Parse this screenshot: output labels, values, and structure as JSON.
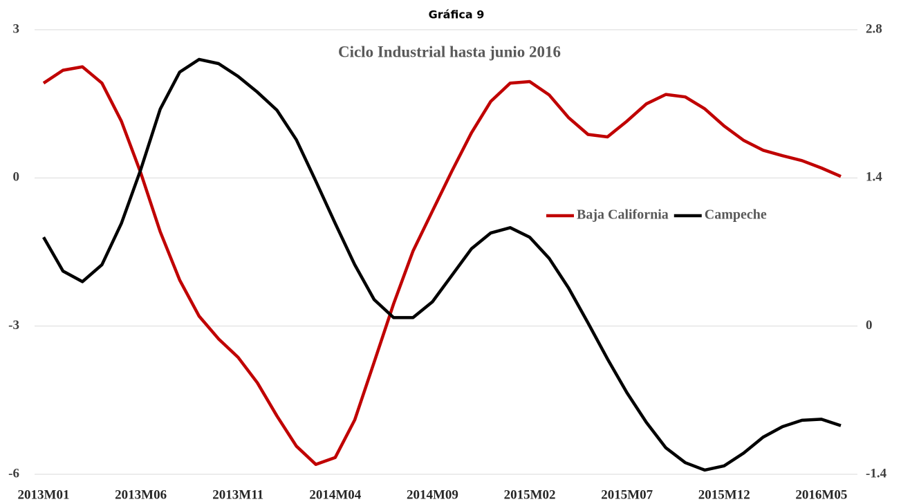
{
  "chart_data": {
    "type": "line",
    "header": "Gráfica 9",
    "title": "Ciclo Industrial hasta junio 2016",
    "categories": [
      "2013M01",
      null,
      null,
      null,
      null,
      "2013M06",
      null,
      null,
      null,
      null,
      "2013M11",
      null,
      null,
      null,
      null,
      "2014M04",
      null,
      null,
      null,
      null,
      "2014M09",
      null,
      null,
      null,
      null,
      "2015M02",
      null,
      null,
      null,
      null,
      "2015M07",
      null,
      null,
      null,
      null,
      "2015M12",
      null,
      null,
      null,
      null,
      "2016M05",
      null
    ],
    "series": [
      {
        "name": "Baja California",
        "color": "#c00000",
        "axis": "y",
        "values": [
          1.92,
          2.18,
          2.25,
          1.92,
          1.15,
          0.1,
          -1.09,
          -2.07,
          -2.8,
          -3.26,
          -3.63,
          -4.15,
          -4.82,
          -5.43,
          -5.8,
          -5.66,
          -4.9,
          -3.73,
          -2.55,
          -1.48,
          -0.67,
          0.14,
          0.91,
          1.55,
          1.92,
          1.95,
          1.68,
          1.22,
          0.88,
          0.83,
          1.15,
          1.5,
          1.69,
          1.64,
          1.4,
          1.05,
          0.76,
          0.56,
          0.45,
          0.35,
          0.2,
          0.03
        ]
      },
      {
        "name": "Campeche",
        "color": "#000000",
        "axis": "y2",
        "values": [
          0.84,
          0.52,
          0.42,
          0.58,
          0.97,
          1.48,
          2.05,
          2.4,
          2.52,
          2.48,
          2.36,
          2.21,
          2.04,
          1.76,
          1.37,
          0.97,
          0.58,
          0.25,
          0.08,
          0.08,
          0.23,
          0.48,
          0.73,
          0.88,
          0.93,
          0.84,
          0.64,
          0.36,
          0.03,
          -0.31,
          -0.63,
          -0.91,
          -1.15,
          -1.29,
          -1.36,
          -1.32,
          -1.2,
          -1.05,
          -0.95,
          -0.89,
          -0.88,
          -0.94
        ]
      }
    ],
    "ylim": [
      -6,
      3
    ],
    "yticks": [
      -6,
      -3,
      0,
      3
    ],
    "y2lim": [
      -1.4,
      2.8
    ],
    "y2ticks": [
      -1.4,
      0,
      1.4,
      2.8
    ],
    "grid": true,
    "legend": "center-right"
  }
}
